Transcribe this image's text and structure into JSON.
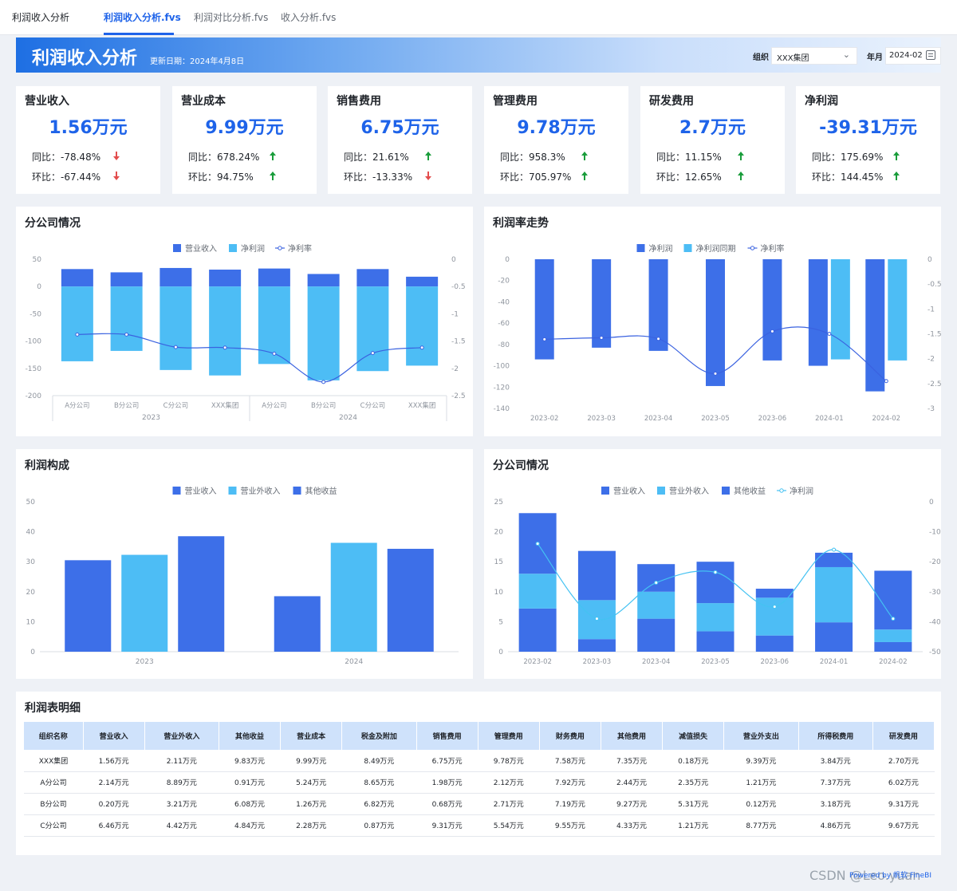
{
  "app": {
    "title": "利润收入分析",
    "tabs": [
      {
        "label": "利润收入分析.fvs"
      },
      {
        "label": "利润对比分析.fvs"
      },
      {
        "label": "收入分析.fvs"
      }
    ]
  },
  "banner": {
    "title": "利润收入分析",
    "date": "更新日期：2024年4月8日",
    "filters": {
      "org_label": "组织",
      "org_value": "XXX集团",
      "month_label": "年月",
      "month_value": "2024-02"
    }
  },
  "kpis": [
    {
      "title": "营业收入",
      "value": "1.56万元",
      "yoy_label": "同比：",
      "yoy": "-78.48%",
      "yoy_dir": "down",
      "mom_label": "环比：",
      "mom": "-67.44%",
      "mom_dir": "down"
    },
    {
      "title": "营业成本",
      "value": "9.99万元",
      "yoy_label": "同比：",
      "yoy": "678.24%",
      "yoy_dir": "up",
      "mom_label": "环比：",
      "mom": "94.75%",
      "mom_dir": "up"
    },
    {
      "title": "销售费用",
      "value": "6.75万元",
      "yoy_label": "同比：",
      "yoy": "21.61%",
      "yoy_dir": "up",
      "mom_label": "环比：",
      "mom": "-13.33%",
      "mom_dir": "down"
    },
    {
      "title": "管理费用",
      "value": "9.78万元",
      "yoy_label": "同比：",
      "yoy": "958.3%",
      "yoy_dir": "up",
      "mom_label": "环比：",
      "mom": "705.97%",
      "mom_dir": "up"
    },
    {
      "title": "研发费用",
      "value": "2.7万元",
      "yoy_label": "同比：",
      "yoy": "11.15%",
      "yoy_dir": "up",
      "mom_label": "环比：",
      "mom": "12.65%",
      "mom_dir": "up"
    },
    {
      "title": "净利润",
      "value": "-39.31万元",
      "yoy_label": "同比：",
      "yoy": "175.69%",
      "yoy_dir": "up",
      "mom_label": "环比：",
      "mom": "144.45%",
      "mom_dir": "up"
    }
  ],
  "colors": {
    "dark_blue": "#3d6fe8",
    "light_blue": "#4dbdf5",
    "line_blue": "#3a62e0",
    "cyan_line": "#44c2f2",
    "accent": "#1e63e9"
  },
  "panels": {
    "branch1_title": "分公司情况",
    "trend_title": "利润率走势",
    "composition_title": "利润构成",
    "branch2_title": "分公司情况",
    "table_title": "利润表明细"
  },
  "chart_data": [
    {
      "id": "branch1",
      "type": "bar",
      "title": "分公司情况",
      "categories": [
        "A分公司",
        "B分公司",
        "C分公司",
        "XXX集团",
        "A分公司",
        "B分公司",
        "C分公司",
        "XXX集团"
      ],
      "groups": [
        {
          "label": "2023",
          "span": 4
        },
        {
          "label": "2024",
          "span": 4
        }
      ],
      "series": [
        {
          "name": "营业收入",
          "values": [
            32,
            26,
            34,
            31,
            33,
            23,
            32,
            18
          ]
        },
        {
          "name": "净利润",
          "values": [
            -137,
            -118,
            -153,
            -163,
            -142,
            -172,
            -155,
            -145
          ]
        },
        {
          "name": "净利率",
          "axis": "right",
          "values": [
            -1.38,
            -1.38,
            -1.61,
            -1.62,
            -1.73,
            -2.25,
            -1.72,
            -1.62
          ]
        }
      ],
      "ylim": [
        -200,
        50
      ],
      "yticks": [
        50,
        0,
        -50,
        -100,
        -150,
        -200
      ],
      "y2lim": [
        -2.5,
        0
      ],
      "y2ticks": [
        "0",
        "-0.5",
        "-1",
        "-1.5",
        "-2",
        "-2.5"
      ]
    },
    {
      "id": "trend",
      "type": "bar",
      "title": "利润率走势",
      "categories": [
        "2023-02",
        "2023-03",
        "2023-04",
        "2023-05",
        "2023-06",
        "2024-01",
        "2024-02"
      ],
      "series": [
        {
          "name": "净利润",
          "values": [
            -94,
            -83,
            -86,
            -119,
            -95,
            -100,
            -124
          ]
        },
        {
          "name": "净利润同期",
          "values": [
            null,
            null,
            null,
            null,
            null,
            -94,
            -95
          ]
        },
        {
          "name": "净利率",
          "axis": "right",
          "values": [
            -1.61,
            -1.58,
            -1.6,
            -2.3,
            -1.45,
            -1.5,
            -2.45
          ]
        }
      ],
      "ylim": [
        -140,
        0
      ],
      "yticks": [
        0,
        -20,
        -40,
        -60,
        -80,
        -100,
        -120,
        -140
      ],
      "y2lim": [
        -3,
        0
      ],
      "y2ticks": [
        "0",
        "-0.5",
        "-1",
        "-1.5",
        "-2",
        "-2.5",
        "-3"
      ]
    },
    {
      "id": "composition",
      "type": "bar",
      "title": "利润构成",
      "categories": [
        "2023",
        "2024"
      ],
      "series": [
        {
          "name": "营业收入",
          "values": [
            30.5,
            18.5
          ]
        },
        {
          "name": "营业外收入",
          "values": [
            32.3,
            36.3
          ]
        },
        {
          "name": "其他收益",
          "values": [
            38.5,
            34.3
          ]
        }
      ],
      "ylim": [
        0,
        50
      ],
      "yticks": [
        50,
        40,
        30,
        20,
        10,
        0
      ]
    },
    {
      "id": "branch2",
      "type": "bar",
      "title": "分公司情况",
      "categories": [
        "2023-02",
        "2023-03",
        "2023-04",
        "2023-05",
        "2023-06",
        "2024-01",
        "2024-02"
      ],
      "series": [
        {
          "name": "营业收入",
          "values": [
            7.2,
            2.1,
            5.5,
            3.4,
            2.7,
            4.9,
            1.6
          ]
        },
        {
          "name": "营业外收入",
          "values": [
            5.8,
            6.5,
            4.5,
            4.7,
            6.3,
            9.2,
            2.1
          ]
        },
        {
          "name": "其他收益",
          "values": [
            10.1,
            8.2,
            4.6,
            6.9,
            1.5,
            2.4,
            9.8
          ]
        },
        {
          "name": "净利润",
          "axis": "right",
          "values": [
            -14,
            -39,
            -27,
            -23.5,
            -35,
            -16,
            -39
          ]
        }
      ],
      "ylim": [
        0,
        25
      ],
      "yticks": [
        25,
        20,
        15,
        10,
        5,
        0
      ],
      "y2lim": [
        -50,
        0
      ],
      "y2ticks": [
        "0",
        "-10",
        "-20",
        "-30",
        "-40",
        "-50"
      ]
    }
  ],
  "table": {
    "headers": [
      "组织名称",
      "营业收入",
      "营业外收入",
      "其他收益",
      "营业成本",
      "税金及附加",
      "销售费用",
      "管理费用",
      "财务费用",
      "其他费用",
      "减值损失",
      "营业外支出",
      "所得税费用",
      "研发费用"
    ],
    "rows": [
      [
        "XXX集团",
        "1.56万元",
        "2.11万元",
        "9.83万元",
        "9.99万元",
        "8.49万元",
        "6.75万元",
        "9.78万元",
        "7.58万元",
        "7.35万元",
        "0.18万元",
        "9.39万元",
        "3.84万元",
        "2.70万元"
      ],
      [
        "A分公司",
        "2.14万元",
        "8.89万元",
        "0.91万元",
        "5.24万元",
        "8.65万元",
        "1.98万元",
        "2.12万元",
        "7.92万元",
        "2.44万元",
        "2.35万元",
        "1.21万元",
        "7.37万元",
        "6.02万元"
      ],
      [
        "B分公司",
        "0.20万元",
        "3.21万元",
        "6.08万元",
        "1.26万元",
        "6.82万元",
        "0.68万元",
        "2.71万元",
        "7.19万元",
        "9.27万元",
        "5.31万元",
        "0.12万元",
        "3.18万元",
        "9.31万元"
      ],
      [
        "C分公司",
        "6.46万元",
        "4.42万元",
        "4.84万元",
        "2.28万元",
        "0.87万元",
        "9.31万元",
        "5.54万元",
        "9.55万元",
        "4.33万元",
        "1.21万元",
        "8.77万元",
        "4.86万元",
        "9.67万元"
      ]
    ]
  },
  "footer": {
    "powered": "Powered by 帆软 FineBI",
    "watermark": "CSDN @Leo.yuan"
  }
}
